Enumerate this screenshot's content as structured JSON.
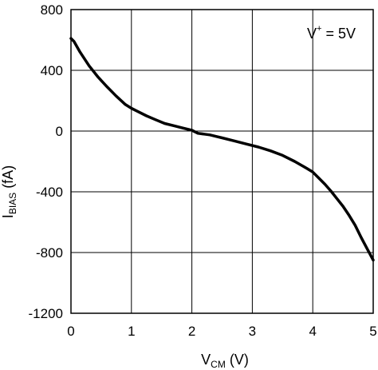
{
  "chart_data": {
    "type": "line",
    "xlabel": {
      "main": "V",
      "sub": "CM",
      "unit": " (V)"
    },
    "ylabel": {
      "main": "I",
      "sub": "BIAS",
      "unit": " (fA)"
    },
    "xlim": [
      0,
      5
    ],
    "ylim": [
      -1200,
      800
    ],
    "x_ticks": [
      0,
      1,
      2,
      3,
      4,
      5
    ],
    "x_tick_labels": [
      "0",
      "1",
      "2",
      "3",
      "4",
      "5"
    ],
    "y_ticks": [
      800,
      400,
      0,
      -400,
      -800,
      -1200
    ],
    "y_tick_labels": [
      "800",
      "400",
      "0",
      "-400",
      "-800",
      "-1200"
    ],
    "grid": true,
    "annotation": {
      "main": "V",
      "sup": "+",
      "rest": " = 5V"
    },
    "series": [
      {
        "color": "#000000",
        "x": [
          0.0,
          0.05,
          0.15,
          0.3,
          0.45,
          0.6,
          0.75,
          0.9,
          1.0,
          1.1,
          1.25,
          1.4,
          1.55,
          1.7,
          1.85,
          2.0,
          2.1,
          2.2,
          2.3,
          2.4,
          2.5,
          2.7,
          2.9,
          3.1,
          3.3,
          3.5,
          3.7,
          3.9,
          4.0,
          4.1,
          4.2,
          4.3,
          4.4,
          4.5,
          4.6,
          4.7,
          4.8,
          4.9,
          5.0
        ],
        "y": [
          610,
          590,
          520,
          430,
          355,
          290,
          230,
          175,
          150,
          130,
          100,
          75,
          50,
          35,
          20,
          5,
          -15,
          -20,
          -25,
          -35,
          -45,
          -65,
          -85,
          -105,
          -130,
          -160,
          -200,
          -245,
          -270,
          -310,
          -350,
          -395,
          -445,
          -495,
          -555,
          -620,
          -700,
          -775,
          -850
        ]
      }
    ]
  }
}
